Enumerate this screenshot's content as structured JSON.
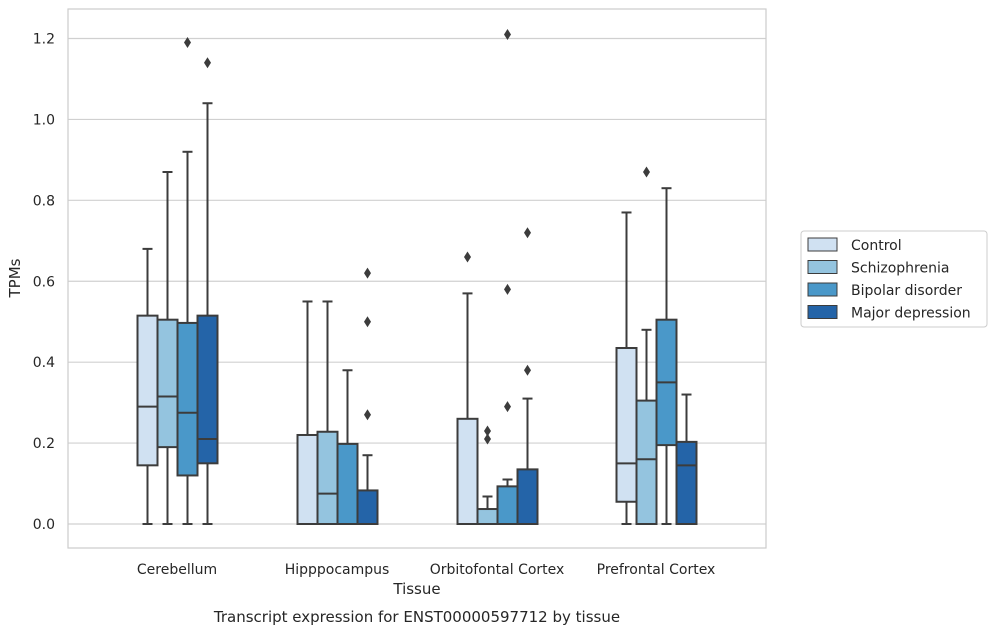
{
  "caption": "Transcript expression for ENST00000597712 by tissue",
  "chart_data": {
    "type": "box",
    "title": "",
    "xlabel": "Tissue",
    "ylabel": "TPMs",
    "ylim": [
      -0.06,
      1.27
    ],
    "yticks": [
      "0.0",
      "0.2",
      "0.4",
      "0.6",
      "0.8",
      "1.0",
      "1.2"
    ],
    "grid": "horizontal",
    "legend_position": "right",
    "categories": [
      "Cerebellum",
      "Hipppocampus",
      "Orbitofontal Cortex",
      "Prefrontal Cortex"
    ],
    "series": [
      {
        "name": "Control",
        "color": "#d0e1f2",
        "boxes": [
          {
            "whisker_low": 0.0,
            "q1": 0.145,
            "median": 0.29,
            "q3": 0.515,
            "whisker_high": 0.68,
            "outliers": []
          },
          {
            "whisker_low": 0.0,
            "q1": 0.0,
            "median": 0.0,
            "q3": 0.22,
            "whisker_high": 0.55,
            "outliers": []
          },
          {
            "whisker_low": 0.0,
            "q1": 0.0,
            "median": 0.0,
            "q3": 0.26,
            "whisker_high": 0.57,
            "outliers": [
              0.66
            ]
          },
          {
            "whisker_low": 0.0,
            "q1": 0.055,
            "median": 0.15,
            "q3": 0.435,
            "whisker_high": 0.77,
            "outliers": []
          }
        ]
      },
      {
        "name": "Schizophrenia",
        "color": "#94c4df",
        "boxes": [
          {
            "whisker_low": 0.0,
            "q1": 0.19,
            "median": 0.315,
            "q3": 0.505,
            "whisker_high": 0.87,
            "outliers": []
          },
          {
            "whisker_low": 0.0,
            "q1": 0.0,
            "median": 0.075,
            "q3": 0.228,
            "whisker_high": 0.55,
            "outliers": []
          },
          {
            "whisker_low": 0.0,
            "q1": 0.0,
            "median": 0.0,
            "q3": 0.037,
            "whisker_high": 0.068,
            "outliers": [
              0.23,
              0.21
            ]
          },
          {
            "whisker_low": 0.0,
            "q1": 0.0,
            "median": 0.16,
            "q3": 0.305,
            "whisker_high": 0.48,
            "outliers": [
              0.87
            ]
          }
        ]
      },
      {
        "name": "Bipolar disorder",
        "color": "#4a98c9",
        "boxes": [
          {
            "whisker_low": 0.0,
            "q1": 0.12,
            "median": 0.275,
            "q3": 0.497,
            "whisker_high": 0.92,
            "outliers": [
              1.19
            ]
          },
          {
            "whisker_low": 0.0,
            "q1": 0.0,
            "median": 0.0,
            "q3": 0.198,
            "whisker_high": 0.38,
            "outliers": []
          },
          {
            "whisker_low": 0.0,
            "q1": 0.0,
            "median": 0.0,
            "q3": 0.093,
            "whisker_high": 0.11,
            "outliers": [
              0.29,
              0.58,
              1.21
            ]
          },
          {
            "whisker_low": 0.0,
            "q1": 0.195,
            "median": 0.35,
            "q3": 0.505,
            "whisker_high": 0.83,
            "outliers": []
          }
        ]
      },
      {
        "name": "Major depression",
        "color": "#2464a8",
        "boxes": [
          {
            "whisker_low": 0.0,
            "q1": 0.15,
            "median": 0.21,
            "q3": 0.515,
            "whisker_high": 1.04,
            "outliers": [
              1.14
            ]
          },
          {
            "whisker_low": 0.0,
            "q1": 0.0,
            "median": 0.0,
            "q3": 0.083,
            "whisker_high": 0.17,
            "outliers": [
              0.27,
              0.5,
              0.62
            ]
          },
          {
            "whisker_low": 0.0,
            "q1": 0.0,
            "median": 0.0,
            "q3": 0.135,
            "whisker_high": 0.31,
            "outliers": [
              0.38,
              0.72
            ]
          },
          {
            "whisker_low": 0.0,
            "q1": 0.0,
            "median": 0.145,
            "q3": 0.203,
            "whisker_high": 0.32,
            "outliers": []
          }
        ]
      }
    ]
  }
}
